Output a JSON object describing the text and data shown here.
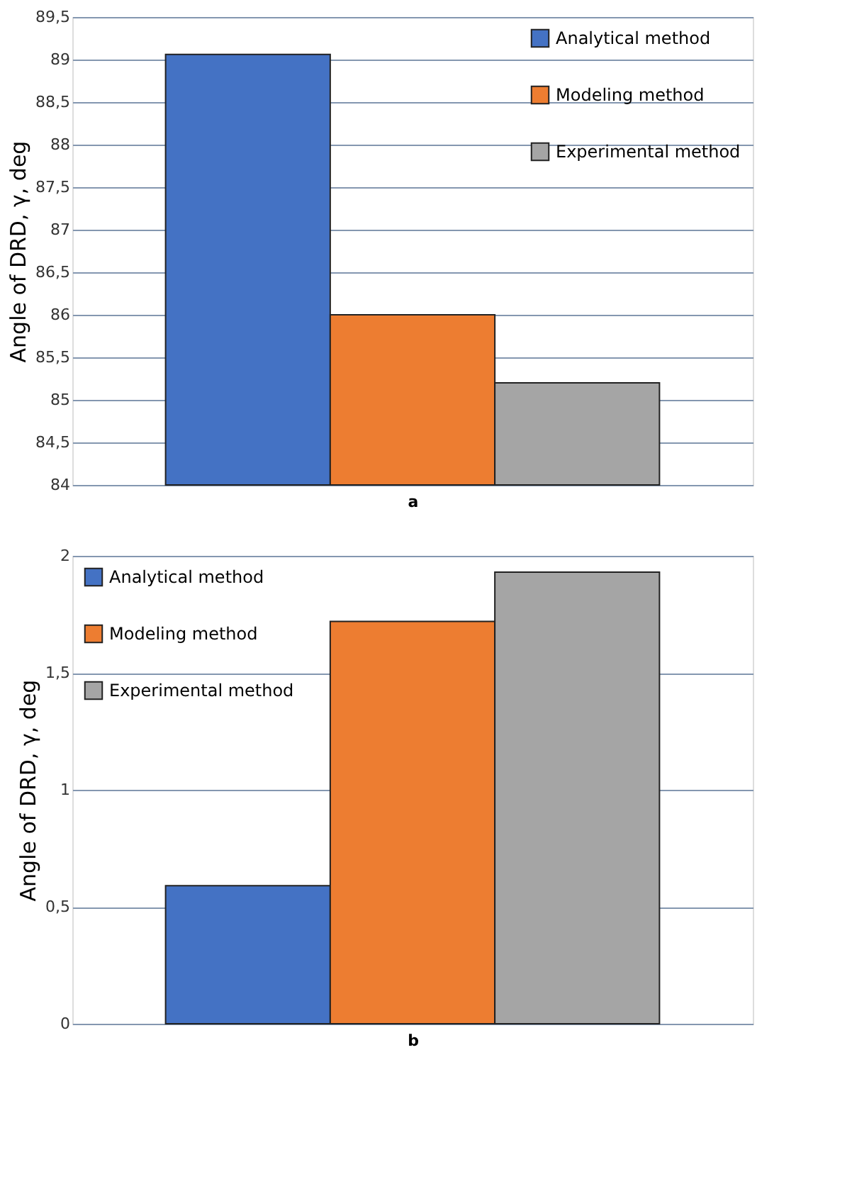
{
  "chart_data": [
    {
      "type": "bar",
      "xlabel": "a",
      "ylabel": "Angle of DRD, γ, deg",
      "categories": [
        null
      ],
      "series": [
        {
          "name": "Analytical method",
          "color": "#4472c4",
          "values": [
            89.06
          ]
        },
        {
          "name": "Modeling method",
          "color": "#ed7d31",
          "values": [
            86.0
          ]
        },
        {
          "name": "Experimental method",
          "color": "#a5a5a5",
          "values": [
            85.2
          ]
        }
      ],
      "ylim": [
        84,
        89.5
      ],
      "yticks": [
        84,
        {
          "value": 84.5,
          "label": "84,5"
        },
        85,
        {
          "value": 85.5,
          "label": "85,5"
        },
        86,
        {
          "value": 86.5,
          "label": "86,5"
        },
        87,
        {
          "value": 87.5,
          "label": "87,5"
        },
        88,
        {
          "value": 88.5,
          "label": "88,5"
        },
        89,
        {
          "value": 89.5,
          "label": "89,5"
        }
      ],
      "grid": "y",
      "legend": "top right"
    },
    {
      "type": "bar",
      "xlabel": "b",
      "ylabel": "Angle of DRD, γ, deg",
      "categories": [
        null
      ],
      "series": [
        {
          "name": "Analytical method",
          "color": "#4472c4",
          "values": [
            0.59
          ]
        },
        {
          "name": "Modeling method",
          "color": "#ed7d31",
          "values": [
            1.72
          ]
        },
        {
          "name": "Experimental method",
          "color": "#a5a5a5",
          "values": [
            1.93
          ]
        }
      ],
      "ylim": [
        0,
        2
      ],
      "yticks": [
        0,
        {
          "value": 0.5,
          "label": "0,5"
        },
        1,
        {
          "value": 1.5,
          "label": "1,5"
        },
        2
      ],
      "grid": "y",
      "legend": "top left"
    }
  ]
}
